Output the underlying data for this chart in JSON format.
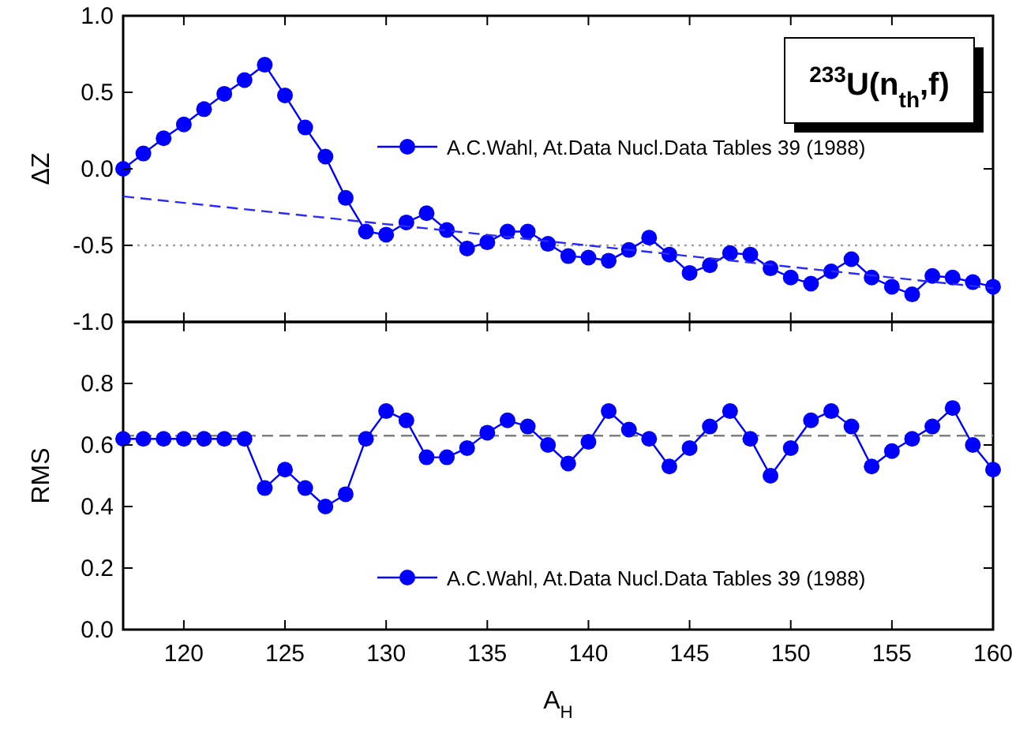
{
  "chart_data": [
    {
      "type": "line",
      "ylabel": "ΔZ",
      "xlim": [
        117,
        160
      ],
      "ylim": [
        -1,
        1
      ],
      "xticks": [
        120,
        125,
        130,
        135,
        140,
        145,
        150,
        155,
        160
      ],
      "yticks": [
        {
          "value": -1,
          "label": "-1.0"
        },
        {
          "value": -0.5,
          "label": "-0.5"
        },
        {
          "value": 0,
          "label": "0.0"
        },
        {
          "value": 0.5,
          "label": "0.5"
        },
        {
          "value": 1,
          "label": "1.0"
        }
      ],
      "tick_labels": "y",
      "legend": "top right",
      "marker": "circle",
      "annotations": [
        "$^{233}$U(n$_{th}$,f)"
      ],
      "ref_lines": [
        {
          "axis": "y",
          "value": -0.5,
          "color": "#a0a0a0",
          "line_style": "dotted"
        }
      ],
      "series": [
        {
          "name": "A.C.Wahl, At.Data Nucl.Data Tables 39 (1988)",
          "color": "#0000ff",
          "x": [
            117,
            118,
            119,
            120,
            121,
            122,
            123,
            124,
            125,
            126,
            127,
            128,
            129,
            130,
            131,
            132,
            133,
            134,
            135,
            136,
            137,
            138,
            139,
            140,
            141,
            142,
            143,
            144,
            145,
            146,
            147,
            148,
            149,
            150,
            151,
            152,
            153,
            154,
            155,
            156,
            157,
            158,
            159,
            160
          ],
          "values": [
            0.0,
            0.1,
            0.2,
            0.29,
            0.39,
            0.49,
            0.58,
            0.68,
            0.48,
            0.27,
            0.08,
            -0.19,
            -0.41,
            -0.43,
            -0.35,
            -0.29,
            -0.4,
            -0.52,
            -0.48,
            -0.41,
            -0.41,
            -0.49,
            -0.57,
            -0.58,
            -0.6,
            -0.53,
            -0.45,
            -0.56,
            -0.68,
            -0.63,
            -0.55,
            -0.56,
            -0.65,
            -0.71,
            -0.75,
            -0.67,
            -0.59,
            -0.71,
            -0.77,
            -0.82,
            -0.7,
            -0.71,
            -0.74,
            -0.77
          ]
        },
        {
          "type": "line",
          "color": "#2a2aff",
          "marker": "none",
          "line_style": "dashed",
          "x": [
            117,
            160
          ],
          "values": [
            -0.18,
            -0.78
          ]
        }
      ]
    },
    {
      "type": "line",
      "xlabel": "A$_{H}$",
      "ylabel": "RMS",
      "xlim": [
        117,
        160
      ],
      "ylim": [
        0,
        1
      ],
      "xticks": [
        120,
        125,
        130,
        135,
        140,
        145,
        150,
        155,
        160
      ],
      "yticks": [
        {
          "value": 0,
          "label": "0.0"
        },
        0.2,
        0.4,
        0.6,
        0.8,
        {
          "value": 1,
          "label": null
        }
      ],
      "legend": "bottom right",
      "marker": "circle",
      "ref_lines": [
        {
          "axis": "y",
          "value": 0.63,
          "color": "#808080",
          "line_style": "dashed"
        }
      ],
      "series": [
        {
          "name": "A.C.Wahl, At.Data Nucl.Data Tables 39 (1988)",
          "color": "#0000ff",
          "x": [
            117,
            118,
            119,
            120,
            121,
            122,
            123,
            124,
            125,
            126,
            127,
            128,
            129,
            130,
            131,
            132,
            133,
            134,
            135,
            136,
            137,
            138,
            139,
            140,
            141,
            142,
            143,
            144,
            145,
            146,
            147,
            148,
            149,
            150,
            151,
            152,
            153,
            154,
            155,
            156,
            157,
            158,
            159,
            160
          ],
          "values": [
            0.62,
            0.62,
            0.62,
            0.62,
            0.62,
            0.62,
            0.62,
            0.46,
            0.52,
            0.46,
            0.4,
            0.44,
            0.62,
            0.71,
            0.68,
            0.56,
            0.56,
            0.59,
            0.64,
            0.68,
            0.66,
            0.6,
            0.54,
            0.61,
            0.71,
            0.65,
            0.62,
            0.53,
            0.59,
            0.66,
            0.71,
            0.62,
            0.5,
            0.59,
            0.68,
            0.71,
            0.66,
            0.53,
            0.58,
            0.62,
            0.66,
            0.72,
            0.6,
            0.52
          ]
        }
      ]
    }
  ]
}
